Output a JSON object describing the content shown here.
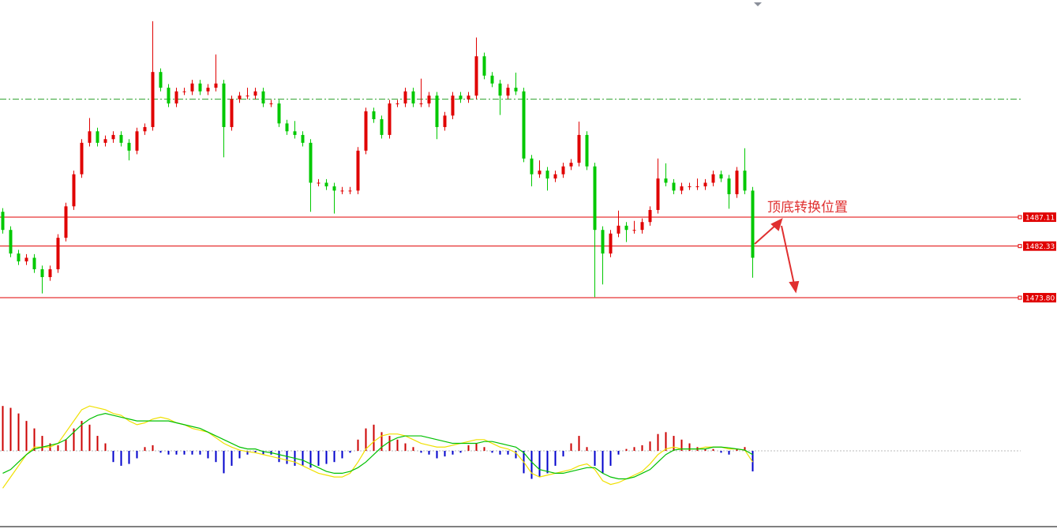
{
  "chart_data": {
    "type": "candlestick",
    "ylim": [
      1468,
      1523
    ],
    "up_color": "#e00000",
    "down_color": "#00c800",
    "candles": [
      [
        1488.0,
        1488.6,
        1484.4,
        1485.0
      ],
      [
        1485.0,
        1485.6,
        1480.5,
        1481.1
      ],
      [
        1481.1,
        1481.7,
        1479.2,
        1479.8
      ],
      [
        1479.8,
        1481.0,
        1479.2,
        1480.4
      ],
      [
        1480.4,
        1481.0,
        1477.9,
        1478.5
      ],
      [
        1478.5,
        1479.1,
        1474.5,
        1477.2
      ],
      [
        1477.2,
        1479.1,
        1476.6,
        1478.5
      ],
      [
        1478.5,
        1484.3,
        1477.9,
        1483.7
      ],
      [
        1483.7,
        1489.5,
        1483.1,
        1488.9
      ],
      [
        1488.9,
        1494.8,
        1488.3,
        1494.2
      ],
      [
        1494.2,
        1500.0,
        1493.6,
        1499.4
      ],
      [
        1499.4,
        1503.5,
        1498.8,
        1501.3
      ],
      [
        1501.3,
        1501.9,
        1498.8,
        1499.4
      ],
      [
        1499.4,
        1500.6,
        1498.8,
        1500.0
      ],
      [
        1500.0,
        1501.3,
        1499.4,
        1500.7
      ],
      [
        1500.7,
        1501.3,
        1498.8,
        1499.4
      ],
      [
        1499.4,
        1500.0,
        1496.5,
        1498.1
      ],
      [
        1498.1,
        1501.9,
        1497.5,
        1501.3
      ],
      [
        1501.3,
        1502.6,
        1500.7,
        1502.0
      ],
      [
        1502.0,
        1519.5,
        1501.4,
        1511.1
      ],
      [
        1511.1,
        1511.7,
        1507.9,
        1508.5
      ],
      [
        1508.5,
        1509.1,
        1505.3,
        1505.9
      ],
      [
        1505.9,
        1508.5,
        1505.3,
        1507.9
      ],
      [
        1507.9,
        1508.5,
        1507.3,
        1507.9
      ],
      [
        1507.9,
        1509.8,
        1507.3,
        1509.2
      ],
      [
        1509.2,
        1509.8,
        1507.3,
        1507.9
      ],
      [
        1507.9,
        1509.1,
        1507.3,
        1508.5
      ],
      [
        1508.5,
        1514.0,
        1507.9,
        1509.2
      ],
      [
        1509.2,
        1509.8,
        1497.0,
        1502.0
      ],
      [
        1502.0,
        1507.2,
        1501.4,
        1506.6
      ],
      [
        1506.6,
        1507.8,
        1506.0,
        1507.2
      ],
      [
        1507.2,
        1508.5,
        1506.6,
        1507.2
      ],
      [
        1507.2,
        1508.5,
        1506.6,
        1507.9
      ],
      [
        1507.9,
        1508.5,
        1505.3,
        1505.9
      ],
      [
        1505.9,
        1506.5,
        1505.3,
        1505.9
      ],
      [
        1505.9,
        1506.5,
        1502.0,
        1502.6
      ],
      [
        1502.6,
        1503.2,
        1500.7,
        1501.3
      ],
      [
        1501.3,
        1503.0,
        1500.1,
        1500.7
      ],
      [
        1500.7,
        1501.3,
        1498.8,
        1499.4
      ],
      [
        1499.4,
        1500.0,
        1488.0,
        1492.8
      ],
      [
        1492.8,
        1493.4,
        1492.2,
        1492.8
      ],
      [
        1492.8,
        1493.4,
        1491.6,
        1492.2
      ],
      [
        1492.2,
        1492.8,
        1487.7,
        1491.5
      ],
      [
        1491.5,
        1492.1,
        1490.9,
        1491.5
      ],
      [
        1491.5,
        1492.1,
        1490.9,
        1491.5
      ],
      [
        1491.5,
        1498.7,
        1490.9,
        1498.1
      ],
      [
        1498.1,
        1505.2,
        1497.5,
        1504.6
      ],
      [
        1504.6,
        1505.2,
        1502.7,
        1503.3
      ],
      [
        1503.3,
        1503.9,
        1500.1,
        1500.7
      ],
      [
        1500.7,
        1506.5,
        1500.1,
        1505.9
      ],
      [
        1505.9,
        1506.5,
        1505.3,
        1505.9
      ],
      [
        1505.9,
        1508.5,
        1505.3,
        1507.9
      ],
      [
        1507.9,
        1508.5,
        1505.3,
        1505.9
      ],
      [
        1505.9,
        1510.0,
        1505.3,
        1505.9
      ],
      [
        1505.9,
        1507.8,
        1505.3,
        1507.2
      ],
      [
        1507.2,
        1507.8,
        1500.0,
        1502.0
      ],
      [
        1502.0,
        1504.5,
        1501.4,
        1503.9
      ],
      [
        1503.9,
        1507.8,
        1503.3,
        1507.2
      ],
      [
        1507.2,
        1507.8,
        1506.0,
        1506.6
      ],
      [
        1506.6,
        1507.8,
        1506.0,
        1507.2
      ],
      [
        1507.2,
        1516.8,
        1506.6,
        1513.7
      ],
      [
        1513.7,
        1514.3,
        1509.9,
        1510.5
      ],
      [
        1510.5,
        1511.1,
        1508.6,
        1509.2
      ],
      [
        1509.2,
        1509.8,
        1504.0,
        1507.2
      ],
      [
        1507.2,
        1509.1,
        1506.6,
        1508.5
      ],
      [
        1508.5,
        1511.0,
        1507.3,
        1507.9
      ],
      [
        1507.9,
        1508.5,
        1496.2,
        1496.8
      ],
      [
        1496.8,
        1497.4,
        1492.2,
        1494.2
      ],
      [
        1494.2,
        1496.5,
        1493.6,
        1494.8
      ],
      [
        1494.8,
        1495.4,
        1491.5,
        1493.5
      ],
      [
        1493.5,
        1494.8,
        1492.9,
        1494.2
      ],
      [
        1494.2,
        1496.1,
        1493.6,
        1495.5
      ],
      [
        1495.5,
        1496.7,
        1494.9,
        1496.1
      ],
      [
        1496.1,
        1502.9,
        1495.5,
        1500.7
      ],
      [
        1500.7,
        1501.3,
        1494.9,
        1495.5
      ],
      [
        1495.5,
        1496.1,
        1473.9,
        1485.0
      ],
      [
        1485.0,
        1485.6,
        1476.0,
        1481.1
      ],
      [
        1481.1,
        1485.0,
        1480.5,
        1484.4
      ],
      [
        1484.4,
        1488.2,
        1483.8,
        1485.7
      ],
      [
        1485.7,
        1486.3,
        1483.0,
        1485.0
      ],
      [
        1485.0,
        1486.5,
        1484.4,
        1485.0
      ],
      [
        1485.0,
        1486.9,
        1484.4,
        1486.3
      ],
      [
        1486.3,
        1488.9,
        1485.7,
        1488.3
      ],
      [
        1488.3,
        1496.8,
        1487.7,
        1493.5
      ],
      [
        1493.5,
        1496.0,
        1492.2,
        1492.8
      ],
      [
        1492.8,
        1493.4,
        1490.9,
        1491.5
      ],
      [
        1491.5,
        1492.8,
        1490.9,
        1492.2
      ],
      [
        1492.2,
        1492.8,
        1491.6,
        1492.2
      ],
      [
        1492.2,
        1493.5,
        1491.6,
        1492.2
      ],
      [
        1492.2,
        1493.4,
        1491.6,
        1492.8
      ],
      [
        1492.8,
        1494.8,
        1492.2,
        1494.2
      ],
      [
        1494.2,
        1494.8,
        1492.9,
        1493.5
      ],
      [
        1493.5,
        1494.1,
        1488.5,
        1490.9
      ],
      [
        1490.9,
        1495.4,
        1490.3,
        1494.8
      ],
      [
        1494.8,
        1498.5,
        1490.9,
        1491.5
      ],
      [
        1491.5,
        1492.1,
        1477.1,
        1480.4
      ]
    ],
    "levels": [
      1487.11,
      1482.33,
      {
        "value": 1473.8,
        "label": "1473.80"
      }
    ],
    "level_color": "#e00000",
    "dashed_level": 1506.6,
    "dashed_color": "#2aa02a",
    "annotation": "顶底转换位置",
    "macd": {
      "ylim": [
        -1.5,
        1.5
      ],
      "pos_color": "#cc0000",
      "neg_color": "#0000cc",
      "dif_color": "#f0e000",
      "dea_color": "#00c000",
      "histogram": [
        1.2,
        1.15,
        1.0,
        0.8,
        0.6,
        0.4,
        0.2,
        0.15,
        0.3,
        0.6,
        0.8,
        0.7,
        0.4,
        0.2,
        -0.3,
        -0.4,
        -0.35,
        -0.2,
        0.1,
        0.15,
        -0.05,
        -0.1,
        -0.1,
        -0.1,
        -0.1,
        -0.1,
        -0.2,
        -0.3,
        -0.6,
        -0.4,
        -0.2,
        -0.1,
        -0.05,
        -0.1,
        -0.1,
        -0.3,
        -0.35,
        -0.4,
        -0.4,
        -0.45,
        -0.4,
        -0.35,
        -0.3,
        -0.2,
        -0.05,
        0.3,
        0.6,
        0.7,
        0.5,
        0.4,
        0.3,
        0.2,
        0.1,
        -0.05,
        -0.1,
        -0.2,
        -0.15,
        -0.1,
        -0.05,
        0.15,
        0.2,
        0.1,
        -0.05,
        -0.1,
        -0.1,
        -0.2,
        -0.6,
        -0.75,
        -0.7,
        -0.6,
        -0.4,
        -0.15,
        0.2,
        0.4,
        0.1,
        -0.4,
        -0.6,
        -0.4,
        -0.1,
        0.05,
        0.1,
        0.15,
        0.25,
        0.45,
        0.5,
        0.4,
        0.3,
        0.2,
        0.1,
        0.05,
        0.05,
        -0.05,
        -0.1,
        0.05,
        0.1,
        -0.55
      ],
      "dif": [
        -1.0,
        -0.7,
        -0.4,
        -0.1,
        0.1,
        0.1,
        0.1,
        0.2,
        0.5,
        0.8,
        1.1,
        1.2,
        1.15,
        1.1,
        1.0,
        0.95,
        0.8,
        0.7,
        0.75,
        0.85,
        0.9,
        0.85,
        0.75,
        0.7,
        0.6,
        0.55,
        0.5,
        0.35,
        0.2,
        0.1,
        0.02,
        -0.02,
        -0.05,
        -0.1,
        -0.15,
        -0.2,
        -0.25,
        -0.3,
        -0.4,
        -0.5,
        -0.6,
        -0.65,
        -0.7,
        -0.7,
        -0.6,
        -0.3,
        0.05,
        0.25,
        0.4,
        0.45,
        0.45,
        0.4,
        0.3,
        0.2,
        0.15,
        0.1,
        0.1,
        0.15,
        0.2,
        0.25,
        0.3,
        0.3,
        0.2,
        0.1,
        0.05,
        -0.05,
        -0.3,
        -0.6,
        -0.7,
        -0.65,
        -0.6,
        -0.55,
        -0.5,
        -0.4,
        -0.35,
        -0.5,
        -0.8,
        -0.9,
        -0.85,
        -0.75,
        -0.65,
        -0.55,
        -0.35,
        -0.1,
        0.05,
        0.1,
        0.05,
        0.05,
        0.05,
        0.1,
        0.1,
        0.1,
        0.05,
        0.05,
        0.02,
        -0.3
      ],
      "dea": [
        -0.6,
        -0.5,
        -0.3,
        -0.1,
        0.05,
        0.1,
        0.15,
        0.2,
        0.3,
        0.5,
        0.7,
        0.85,
        0.95,
        1.0,
        0.95,
        0.9,
        0.85,
        0.8,
        0.8,
        0.8,
        0.8,
        0.8,
        0.75,
        0.7,
        0.65,
        0.6,
        0.5,
        0.4,
        0.3,
        0.2,
        0.1,
        0.05,
        0.05,
        -0.02,
        -0.05,
        -0.1,
        -0.15,
        -0.2,
        -0.25,
        -0.35,
        -0.45,
        -0.55,
        -0.6,
        -0.6,
        -0.55,
        -0.45,
        -0.3,
        -0.1,
        0.1,
        0.25,
        0.35,
        0.4,
        0.4,
        0.4,
        0.35,
        0.3,
        0.25,
        0.2,
        0.2,
        0.2,
        0.2,
        0.25,
        0.25,
        0.2,
        0.15,
        0.1,
        -0.05,
        -0.3,
        -0.5,
        -0.55,
        -0.6,
        -0.6,
        -0.55,
        -0.5,
        -0.45,
        -0.45,
        -0.6,
        -0.7,
        -0.75,
        -0.75,
        -0.7,
        -0.6,
        -0.5,
        -0.3,
        -0.1,
        0.02,
        0.05,
        0.05,
        0.05,
        0.05,
        0.1,
        0.1,
        0.08,
        0.05,
        0.02,
        -0.1
      ]
    }
  }
}
